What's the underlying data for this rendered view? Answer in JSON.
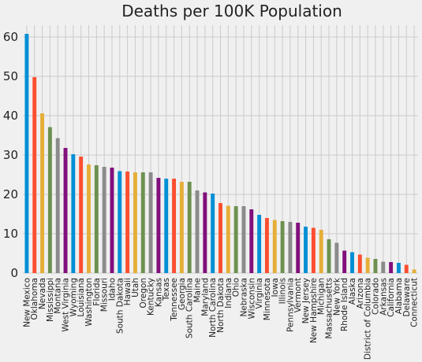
{
  "chart_data": {
    "type": "bar",
    "title": "Deaths per 100K Population",
    "xlabel": "",
    "ylabel": "",
    "ylim": [
      0,
      63
    ],
    "yticks": [
      0,
      10,
      20,
      30,
      40,
      50,
      60
    ],
    "grid": true,
    "legend": "none",
    "palette": [
      "#008fd5",
      "#fc4f30",
      "#e5ae38",
      "#6d904f",
      "#8b8b8b",
      "#810f7c"
    ],
    "background": "#f0f0f0",
    "categories": [
      "New Mexico",
      "Oklahoma",
      "Nevada",
      "Mississippi",
      "Montana",
      "West Virginia",
      "Wyoming",
      "Louisiana",
      "Washington",
      "Florida",
      "Missouri",
      "Idaho",
      "South Dakota",
      "Hawaii",
      "Utah",
      "Oregon",
      "Kentucky",
      "Kansas",
      "Texas",
      "Tennessee",
      "Georgia",
      "South Carolina",
      "Maine",
      "Maryland",
      "North Carolina",
      "North Dakota",
      "Indiana",
      "Ohio",
      "Nebraska",
      "Wisconsin",
      "Virginia",
      "Minnesota",
      "Iowa",
      "Illinois",
      "Pennsylvania",
      "Vermont",
      "New Jersey",
      "New Hampshire",
      "Michigan",
      "Massachusetts",
      "New York",
      "Rhode Island",
      "Alaska",
      "Arizona",
      "District of Columbia",
      "Colorado",
      "Arkansas",
      "California",
      "Alabama",
      "Delaware",
      "Connecticut"
    ],
    "values": [
      60.8,
      49.8,
      40.6,
      37.1,
      34.3,
      31.8,
      30.2,
      29.6,
      27.6,
      27.4,
      27.0,
      26.8,
      25.9,
      25.8,
      25.6,
      25.6,
      25.6,
      24.2,
      24.0,
      24.0,
      23.2,
      23.2,
      21.0,
      20.5,
      20.2,
      17.8,
      17.1,
      17.0,
      17.0,
      16.2,
      14.8,
      14.0,
      13.5,
      13.2,
      13.0,
      12.8,
      11.8,
      11.5,
      11.0,
      8.6,
      7.7,
      5.7,
      5.3,
      4.7,
      3.9,
      3.6,
      2.9,
      2.8,
      2.6,
      2.1,
      0.9
    ]
  }
}
